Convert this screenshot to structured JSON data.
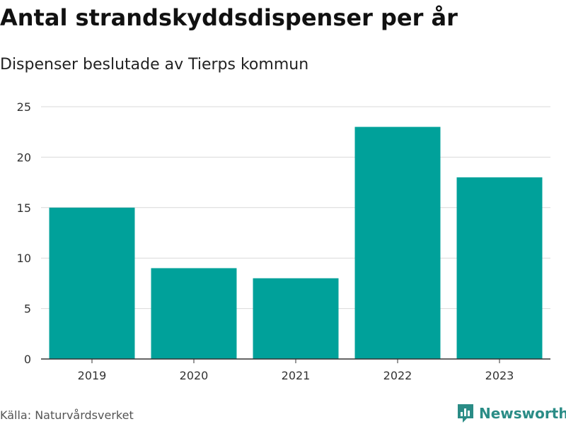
{
  "chart_data": {
    "type": "bar",
    "title": "Antal strandskyddsdispenser per år",
    "subtitle": "Dispenser beslutade av Tierps kommun",
    "categories": [
      "2019",
      "2020",
      "2021",
      "2022",
      "2023"
    ],
    "values": [
      15,
      9,
      8,
      23,
      18
    ],
    "ylim": [
      0,
      25
    ],
    "yticks": [
      0,
      5,
      10,
      15,
      20,
      25
    ],
    "xlabel": "",
    "ylabel": "",
    "grid": true,
    "bar_color": "#00a19a"
  },
  "footer": {
    "source": "Källa: Naturvårdsverket",
    "brand": "Newsworthy",
    "brand_icon": "newsworthy-logo-icon",
    "brand_color": "#2a8c86"
  }
}
